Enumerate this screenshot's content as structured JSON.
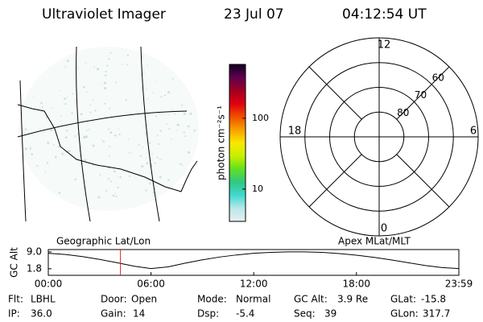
{
  "header": {
    "title": "Ultraviolet Imager",
    "date": "23 Jul 07",
    "time": "04:12:54 UT"
  },
  "map": {
    "title": "Geographic Lat/Lon"
  },
  "chart_data": [
    {
      "type": "colorbar",
      "label": "photon cm⁻²s⁻¹",
      "log_scale": true,
      "ylim": [
        3.5,
        575
      ],
      "yticks": [
        10,
        100
      ],
      "colors": [
        "#e8eef0",
        "#b8e8e8",
        "#40d8d0",
        "#30c880",
        "#60e020",
        "#c8f000",
        "#f8e800",
        "#f8a000",
        "#f05000",
        "#e00010",
        "#a00020",
        "#600050",
        "#100020"
      ]
    },
    {
      "type": "polar",
      "title": "Apex MLat/MLT",
      "mlt_ticks": [
        0,
        6,
        12,
        18
      ],
      "rlim": [
        90,
        50
      ],
      "rticks": [
        80,
        70,
        60
      ]
    },
    {
      "type": "line",
      "ylabel": "GC Alt",
      "color": "#000000",
      "marker_x": 4.215,
      "marker_color": "#e02020",
      "x": [
        0,
        1,
        2,
        3,
        4,
        5,
        6,
        7,
        8,
        9,
        10,
        11,
        12,
        13,
        14,
        15,
        16,
        17,
        18,
        19,
        20,
        21,
        22,
        23,
        23.983
      ],
      "values": [
        8.4,
        7.9,
        7.0,
        5.8,
        4.4,
        2.9,
        1.9,
        2.6,
        4.2,
        5.6,
        6.8,
        7.7,
        8.4,
        8.8,
        9.0,
        9.0,
        8.8,
        8.3,
        7.6,
        6.7,
        5.6,
        4.4,
        3.2,
        2.3,
        1.9
      ],
      "xlim": [
        0,
        23.983
      ],
      "xticks": [
        {
          "value": 0,
          "label": "00:00"
        },
        {
          "value": 6,
          "label": "06:00"
        },
        {
          "value": 12,
          "label": "12:00"
        },
        {
          "value": 18,
          "label": "18:00"
        },
        {
          "value": 23.983,
          "label": "23:59"
        }
      ],
      "ylim": [
        -1,
        10
      ],
      "yticks": [
        {
          "value": 1.8,
          "label": "1.8"
        },
        {
          "value": 9,
          "label": "9.0"
        }
      ]
    }
  ],
  "status": [
    [
      [
        "Flt:",
        "LBHL"
      ],
      [
        "Door:",
        "Open"
      ],
      [
        "Mode:",
        "Normal"
      ],
      [
        "GC Alt:",
        "3.9 Re"
      ],
      [
        "GLat:",
        "-15.8"
      ]
    ],
    [
      [
        "IP:",
        "36.0"
      ],
      [
        "Gain:",
        "14"
      ],
      [
        "Dsp:",
        "-5.4"
      ],
      [
        "Seq:",
        "39"
      ],
      [
        "GLon:",
        "317.7"
      ]
    ]
  ]
}
